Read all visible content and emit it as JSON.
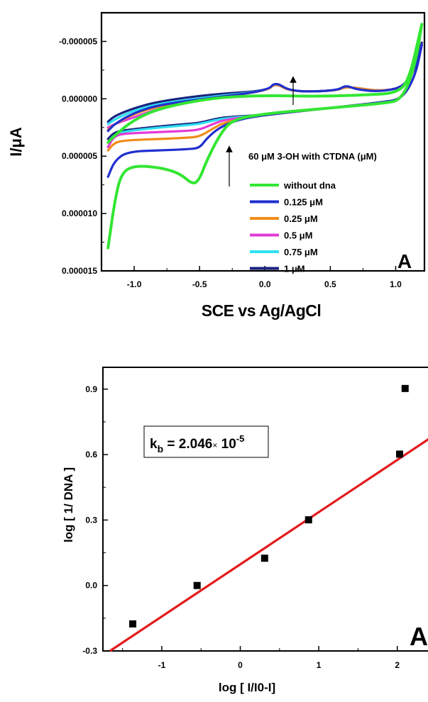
{
  "chart_data": [
    {
      "type": "line",
      "panel_label": "A",
      "xlabel": "SCE vs Ag/AgCl",
      "ylabel": "I/μA",
      "xlim": [
        -1.25,
        1.22
      ],
      "ylim": [
        1.5e-05,
        -7.5e-06
      ],
      "x_ticks": [
        "-1.0",
        "-0.5",
        "0.0",
        "0.5",
        "1.0"
      ],
      "x_tick_values": [
        -1.0,
        -0.5,
        0.0,
        0.5,
        1.0
      ],
      "y_ticks": [
        "-0.000005",
        "0.000000",
        "0.000005",
        "0.000010",
        "0.000015"
      ],
      "y_tick_values": [
        -5e-06,
        0.0,
        5e-06,
        1e-05,
        1.5e-05
      ],
      "legend_title": "60 μM 3-OH with CTDNA (μM)",
      "legend_position": "bottom-right",
      "series": [
        {
          "name": "without dna",
          "color": "#33e633",
          "lower": [
            [
              -1.2,
              1.3e-05
            ],
            [
              -1.15,
              9e-06
            ],
            [
              -1.1,
              6.5e-06
            ],
            [
              -1.0,
              5.8e-06
            ],
            [
              -0.8,
              6e-06
            ],
            [
              -0.65,
              6.5e-06
            ],
            [
              -0.55,
              7.5e-06
            ],
            [
              -0.5,
              7e-06
            ],
            [
              -0.45,
              5.5e-06
            ],
            [
              -0.35,
              3.2e-06
            ],
            [
              -0.25,
              1.8e-06
            ],
            [
              0.0,
              1.3e-06
            ],
            [
              0.3,
              1e-06
            ],
            [
              0.6,
              7e-07
            ],
            [
              0.9,
              4e-07
            ],
            [
              1.05,
              1e-07
            ],
            [
              1.15,
              -3e-06
            ],
            [
              1.2,
              -6.5e-06
            ]
          ],
          "upper": [
            [
              1.2,
              -6.5e-06
            ],
            [
              1.1,
              -1.5e-06
            ],
            [
              1.0,
              -5e-07
            ],
            [
              0.8,
              -3.5e-07
            ],
            [
              0.4,
              -2e-07
            ],
            [
              0.0,
              -3e-07
            ],
            [
              -0.4,
              -1e-07
            ],
            [
              -0.8,
              8e-07
            ],
            [
              -1.0,
              1.8e-06
            ],
            [
              -1.15,
              3.2e-06
            ],
            [
              -1.2,
              3.8e-06
            ]
          ]
        },
        {
          "name": "0.125 μM",
          "color": "#1f2fd0",
          "lower": [
            [
              -1.2,
              6.8e-06
            ],
            [
              -1.15,
              5.4e-06
            ],
            [
              -1.05,
              4.6e-06
            ],
            [
              -0.8,
              4.5e-06
            ],
            [
              -0.6,
              4.4e-06
            ],
            [
              -0.5,
              4.3e-06
            ],
            [
              -0.45,
              3.5e-06
            ],
            [
              -0.35,
              2.5e-06
            ],
            [
              -0.2,
              1.8e-06
            ],
            [
              0.0,
              1.4e-06
            ],
            [
              0.5,
              8e-07
            ],
            [
              0.9,
              3e-07
            ],
            [
              1.05,
              0.0
            ],
            [
              1.15,
              -2e-06
            ],
            [
              1.2,
              -4.7e-06
            ]
          ],
          "upper": [
            [
              1.2,
              -4.7e-06
            ],
            [
              1.1,
              -1.2e-06
            ],
            [
              0.9,
              -6e-07
            ],
            [
              0.7,
              -8e-07
            ],
            [
              0.62,
              -1.2e-06
            ],
            [
              0.55,
              -7e-07
            ],
            [
              0.2,
              -6e-07
            ],
            [
              0.08,
              -1.5e-06
            ],
            [
              0.02,
              -7e-07
            ],
            [
              -0.4,
              -1e-07
            ],
            [
              -0.8,
              5e-07
            ],
            [
              -1.0,
              1.2e-06
            ],
            [
              -1.15,
              2.2e-06
            ],
            [
              -1.2,
              2.8e-06
            ]
          ]
        },
        {
          "name": "0.25 μM",
          "color": "#f08c1a",
          "lower": [
            [
              -1.2,
              4.5e-06
            ],
            [
              -1.15,
              3.8e-06
            ],
            [
              -1.05,
              3.6e-06
            ],
            [
              -0.8,
              3.5e-06
            ],
            [
              -0.6,
              3.4e-06
            ],
            [
              -0.5,
              3.3e-06
            ],
            [
              -0.4,
              2.6e-06
            ],
            [
              -0.3,
              2e-06
            ],
            [
              0.0,
              1.4e-06
            ],
            [
              0.5,
              8e-07
            ],
            [
              0.9,
              3e-07
            ],
            [
              1.05,
              0.0
            ],
            [
              1.15,
              -2e-06
            ],
            [
              1.2,
              -4.7e-06
            ]
          ],
          "upper": [
            [
              1.2,
              -4.7e-06
            ],
            [
              1.1,
              -1.2e-06
            ],
            [
              0.9,
              -6e-07
            ],
            [
              0.62,
              -1.1e-06
            ],
            [
              0.55,
              -7e-07
            ],
            [
              0.2,
              -6e-07
            ],
            [
              0.08,
              -1.4e-06
            ],
            [
              0.02,
              -7e-07
            ],
            [
              -0.4,
              -1e-07
            ],
            [
              -0.8,
              6e-07
            ],
            [
              -1.0,
              1.3e-06
            ],
            [
              -1.15,
              2.2e-06
            ],
            [
              -1.2,
              2.7e-06
            ]
          ]
        },
        {
          "name": "0.5 μM",
          "color": "#e43ad6",
          "lower": [
            [
              -1.2,
              4.2e-06
            ],
            [
              -1.15,
              3.2e-06
            ],
            [
              -1.05,
              3e-06
            ],
            [
              -0.8,
              2.9e-06
            ],
            [
              -0.6,
              2.8e-06
            ],
            [
              -0.5,
              2.7e-06
            ],
            [
              -0.4,
              2.2e-06
            ],
            [
              -0.3,
              1.8e-06
            ],
            [
              0.0,
              1.4e-06
            ],
            [
              0.5,
              8e-07
            ],
            [
              0.9,
              3e-07
            ],
            [
              1.05,
              0.0
            ],
            [
              1.15,
              -2e-06
            ],
            [
              1.2,
              -4.7e-06
            ]
          ],
          "upper": [
            [
              1.2,
              -4.7e-06
            ],
            [
              1.1,
              -1.2e-06
            ],
            [
              0.9,
              -6e-07
            ],
            [
              0.62,
              -1.1e-06
            ],
            [
              0.55,
              -7e-07
            ],
            [
              0.2,
              -6e-07
            ],
            [
              0.08,
              -1.4e-06
            ],
            [
              0.02,
              -7e-07
            ],
            [
              -0.4,
              -1e-07
            ],
            [
              -0.8,
              8e-07
            ],
            [
              -1.0,
              1.6e-06
            ],
            [
              -1.15,
              2.2e-06
            ],
            [
              -1.2,
              2.5e-06
            ]
          ]
        },
        {
          "name": "0.75 μM",
          "color": "#2fe0f0",
          "lower": [
            [
              -1.2,
              3.8e-06
            ],
            [
              -1.15,
              3.1e-06
            ],
            [
              -1.05,
              2.8e-06
            ],
            [
              -0.8,
              2.5e-06
            ],
            [
              -0.6,
              2.3e-06
            ],
            [
              -0.5,
              2.2e-06
            ],
            [
              -0.4,
              1.9e-06
            ],
            [
              -0.3,
              1.7e-06
            ],
            [
              0.0,
              1.4e-06
            ],
            [
              0.5,
              8e-07
            ],
            [
              0.9,
              3e-07
            ],
            [
              1.05,
              0.0
            ],
            [
              1.15,
              -2e-06
            ],
            [
              1.2,
              -4.7e-06
            ]
          ],
          "upper": [
            [
              1.2,
              -4.7e-06
            ],
            [
              1.1,
              -1.2e-06
            ],
            [
              0.9,
              -6e-07
            ],
            [
              0.62,
              -1.1e-06
            ],
            [
              0.55,
              -7e-07
            ],
            [
              0.2,
              -6e-07
            ],
            [
              0.08,
              -1.4e-06
            ],
            [
              0.02,
              -7e-07
            ],
            [
              -0.4,
              -2e-07
            ],
            [
              -0.8,
              4e-07
            ],
            [
              -1.0,
              1e-06
            ],
            [
              -1.15,
              1.8e-06
            ],
            [
              -1.2,
              2.2e-06
            ]
          ]
        },
        {
          "name": "1 μM",
          "color": "#1a237e",
          "lower": [
            [
              -1.2,
              3.5e-06
            ],
            [
              -1.15,
              2.9e-06
            ],
            [
              -1.05,
              2.7e-06
            ],
            [
              -0.8,
              2.4e-06
            ],
            [
              -0.6,
              2.2e-06
            ],
            [
              -0.5,
              2.1e-06
            ],
            [
              -0.4,
              1.8e-06
            ],
            [
              -0.3,
              1.6e-06
            ],
            [
              0.0,
              1.4e-06
            ],
            [
              0.5,
              8e-07
            ],
            [
              0.9,
              3e-07
            ],
            [
              1.05,
              0.0
            ],
            [
              1.15,
              -2e-06
            ],
            [
              1.2,
              -4.9e-06
            ]
          ],
          "upper": [
            [
              1.2,
              -4.9e-06
            ],
            [
              1.1,
              -1.2e-06
            ],
            [
              0.9,
              -6e-07
            ],
            [
              0.62,
              -1.1e-06
            ],
            [
              0.55,
              -7e-07
            ],
            [
              0.2,
              -6e-07
            ],
            [
              0.08,
              -1.4e-06
            ],
            [
              0.02,
              -7e-07
            ],
            [
              -0.4,
              -4e-07
            ],
            [
              -0.8,
              2e-07
            ],
            [
              -1.0,
              8e-07
            ],
            [
              -1.15,
              1.5e-06
            ],
            [
              -1.2,
              2e-06
            ]
          ]
        }
      ]
    },
    {
      "type": "scatter",
      "panel_label": "A",
      "xlabel": "log [ I/I0-I]",
      "ylabel": "log [ 1/ DNA ]",
      "xlim": [
        -1.75,
        2.5
      ],
      "ylim": [
        -0.3,
        1.0
      ],
      "x_ticks": [
        "-1",
        "0",
        "1",
        "2"
      ],
      "x_tick_values": [
        -1,
        0,
        1,
        2
      ],
      "y_ticks": [
        "-0.3",
        "0.0",
        "0.3",
        "0.6",
        "0.9"
      ],
      "y_tick_values": [
        -0.3,
        0.0,
        0.3,
        0.6,
        0.9
      ],
      "points": [
        {
          "x": -1.37,
          "y": -0.176
        },
        {
          "x": -0.55,
          "y": 0.0
        },
        {
          "x": 0.31,
          "y": 0.125
        },
        {
          "x": 0.87,
          "y": 0.301
        },
        {
          "x": 2.03,
          "y": 0.602
        },
        {
          "x": 2.1,
          "y": 0.903
        }
      ],
      "fit_line": {
        "color": "#e31a1c",
        "x": [
          -1.66,
          2.5
        ],
        "y": [
          -0.3,
          0.695
        ]
      },
      "annotation": {
        "main": "k",
        "sub": "b",
        "middle": " = 2.046",
        "times": "×",
        "base": " 10",
        "exp": "-5"
      }
    }
  ]
}
